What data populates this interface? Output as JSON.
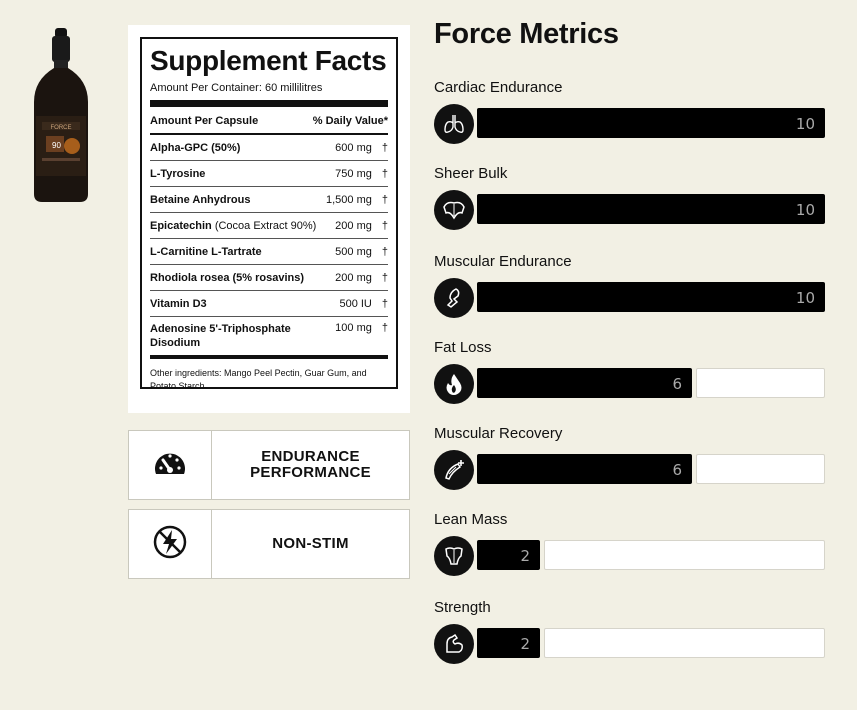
{
  "product": {
    "image_name": "dropper-bottle",
    "label_text": "FORCE",
    "label_number": "90"
  },
  "facts": {
    "title": "Supplement Facts",
    "amount_per_container": "Amount Per Container: 60 millilitres",
    "col_left": "Amount Per Capsule",
    "col_right": "% Daily Value*",
    "rows": [
      {
        "name": "Alpha-GPC (50%)",
        "sub": "",
        "amount": "600 mg",
        "dv": "†"
      },
      {
        "name": "L-Tyrosine",
        "sub": "",
        "amount": "750 mg",
        "dv": "†"
      },
      {
        "name": "Betaine Anhydrous",
        "sub": "",
        "amount": "1,500 mg",
        "dv": "†"
      },
      {
        "name": "Epicatechin",
        "sub": "(Cocoa Extract 90%)",
        "amount": "200 mg",
        "dv": "†"
      },
      {
        "name": "L-Carnitine L-Tartrate",
        "sub": "",
        "amount": "500 mg",
        "dv": "†"
      },
      {
        "name": "Rhodiola rosea (5% rosavins)",
        "sub": "",
        "amount": "200 mg",
        "dv": "†"
      },
      {
        "name": "Vitamin D3",
        "sub": "",
        "amount": "500 IU",
        "dv": "†"
      },
      {
        "name": "Adenosine 5'-Triphosphate Disodium",
        "sub": "",
        "amount": "100 mg",
        "dv": "†"
      }
    ],
    "ingredients": "Other ingredients: Mango Peel Pectin, Guar Gum, and Potato Starch."
  },
  "features": [
    {
      "icon": "speedometer-icon",
      "label_line1": "ENDURANCE",
      "label_line2": "PERFORMANCE"
    },
    {
      "icon": "no-stimulant-icon",
      "label_line1": "NON-STIM",
      "label_line2": ""
    }
  ],
  "metrics": {
    "title": "Force Metrics",
    "max": 10,
    "items": [
      {
        "label": "Cardiac Endurance",
        "value": 10,
        "value_text": "10",
        "icon": "lungs-icon"
      },
      {
        "label": "Sheer Bulk",
        "value": 10,
        "value_text": "10",
        "icon": "muscle-back-icon"
      },
      {
        "label": "Muscular Endurance",
        "value": 10,
        "value_text": "10",
        "icon": "running-leg-icon"
      },
      {
        "label": "Fat Loss",
        "value": 6,
        "value_text": "6",
        "icon": "flame-icon"
      },
      {
        "label": "Muscular Recovery",
        "value": 6,
        "value_text": "6",
        "icon": "muscle-fiber-plus-icon"
      },
      {
        "label": "Lean Mass",
        "value": 2,
        "value_text": "2",
        "icon": "torso-icon"
      },
      {
        "label": "Strength",
        "value": 2,
        "value_text": "2",
        "icon": "flexed-arm-icon"
      }
    ]
  },
  "colors": {
    "background": "#f2f0e4",
    "bar_fill": "#000000",
    "bar_empty": "#ffffff",
    "value_text": "#aaaaaa"
  }
}
